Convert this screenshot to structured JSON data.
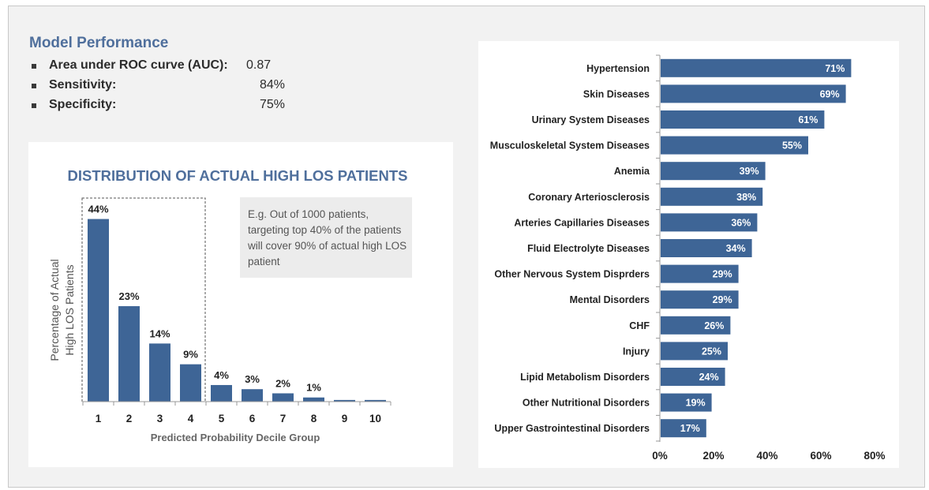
{
  "model_performance": {
    "title": "Model Performance",
    "metrics": [
      {
        "label": "Area under ROC curve (AUC):",
        "value": "0.87"
      },
      {
        "label": "Sensitivity:",
        "value": "84%"
      },
      {
        "label": "Specificity:",
        "value": "75%"
      }
    ]
  },
  "callout": {
    "text": "E.g. Out of  1000 patients, targeting top 40% of the patients will cover 90% of actual high LOS patient"
  },
  "chart_data": [
    {
      "type": "bar",
      "title": "DISTRIBUTION OF ACTUAL HIGH LOS PATIENTS",
      "xlabel": "Predicted Probability Decile Group",
      "ylabel_lines": [
        "Percentage of Actual",
        "High LOS Patients"
      ],
      "categories": [
        "1",
        "2",
        "3",
        "4",
        "5",
        "6",
        "7",
        "8",
        "9",
        "10"
      ],
      "values": [
        44,
        23,
        14,
        9,
        4,
        3,
        2,
        1,
        0.4,
        0.4
      ],
      "data_labels": [
        "44%",
        "23%",
        "14%",
        "9%",
        "4%",
        "3%",
        "2%",
        "1%",
        "",
        ""
      ],
      "highlight_groups": [
        "1",
        "2",
        "3",
        "4"
      ],
      "ylim": [
        0,
        50
      ],
      "grid": false,
      "color": "#3e6596"
    },
    {
      "type": "bar",
      "orientation": "horizontal",
      "title": "",
      "categories": [
        "Hypertension",
        "Skin Diseases",
        "Urinary System Diseases",
        "Musculoskeletal System Diseases",
        "Anemia",
        "Coronary Arteriosclerosis",
        "Arteries Capillaries Diseases",
        "Fluid Electrolyte Diseases",
        "Other Nervous System Disprders",
        "Mental Disorders",
        "CHF",
        "Injury",
        "Lipid Metabolism Disorders",
        "Other Nutritional Disorders",
        "Upper Gastrointestinal Disorders"
      ],
      "values": [
        71,
        69,
        61,
        55,
        39,
        38,
        36,
        34,
        29,
        29,
        26,
        25,
        24,
        19,
        17
      ],
      "data_labels": [
        "71%",
        "69%",
        "61%",
        "55%",
        "39%",
        "38%",
        "36%",
        "34%",
        "29%",
        "29%",
        "26%",
        "25%",
        "24%",
        "19%",
        "17%"
      ],
      "x_ticks": [
        "0%",
        "20%",
        "40%",
        "60%",
        "80%"
      ],
      "xlim": [
        0,
        80
      ],
      "grid": false,
      "color": "#3e6596"
    }
  ],
  "colors": {
    "bar": "#3e6596",
    "title": "#4f6f9c",
    "panel": "#ffffff",
    "background": "#f2f2f2"
  }
}
